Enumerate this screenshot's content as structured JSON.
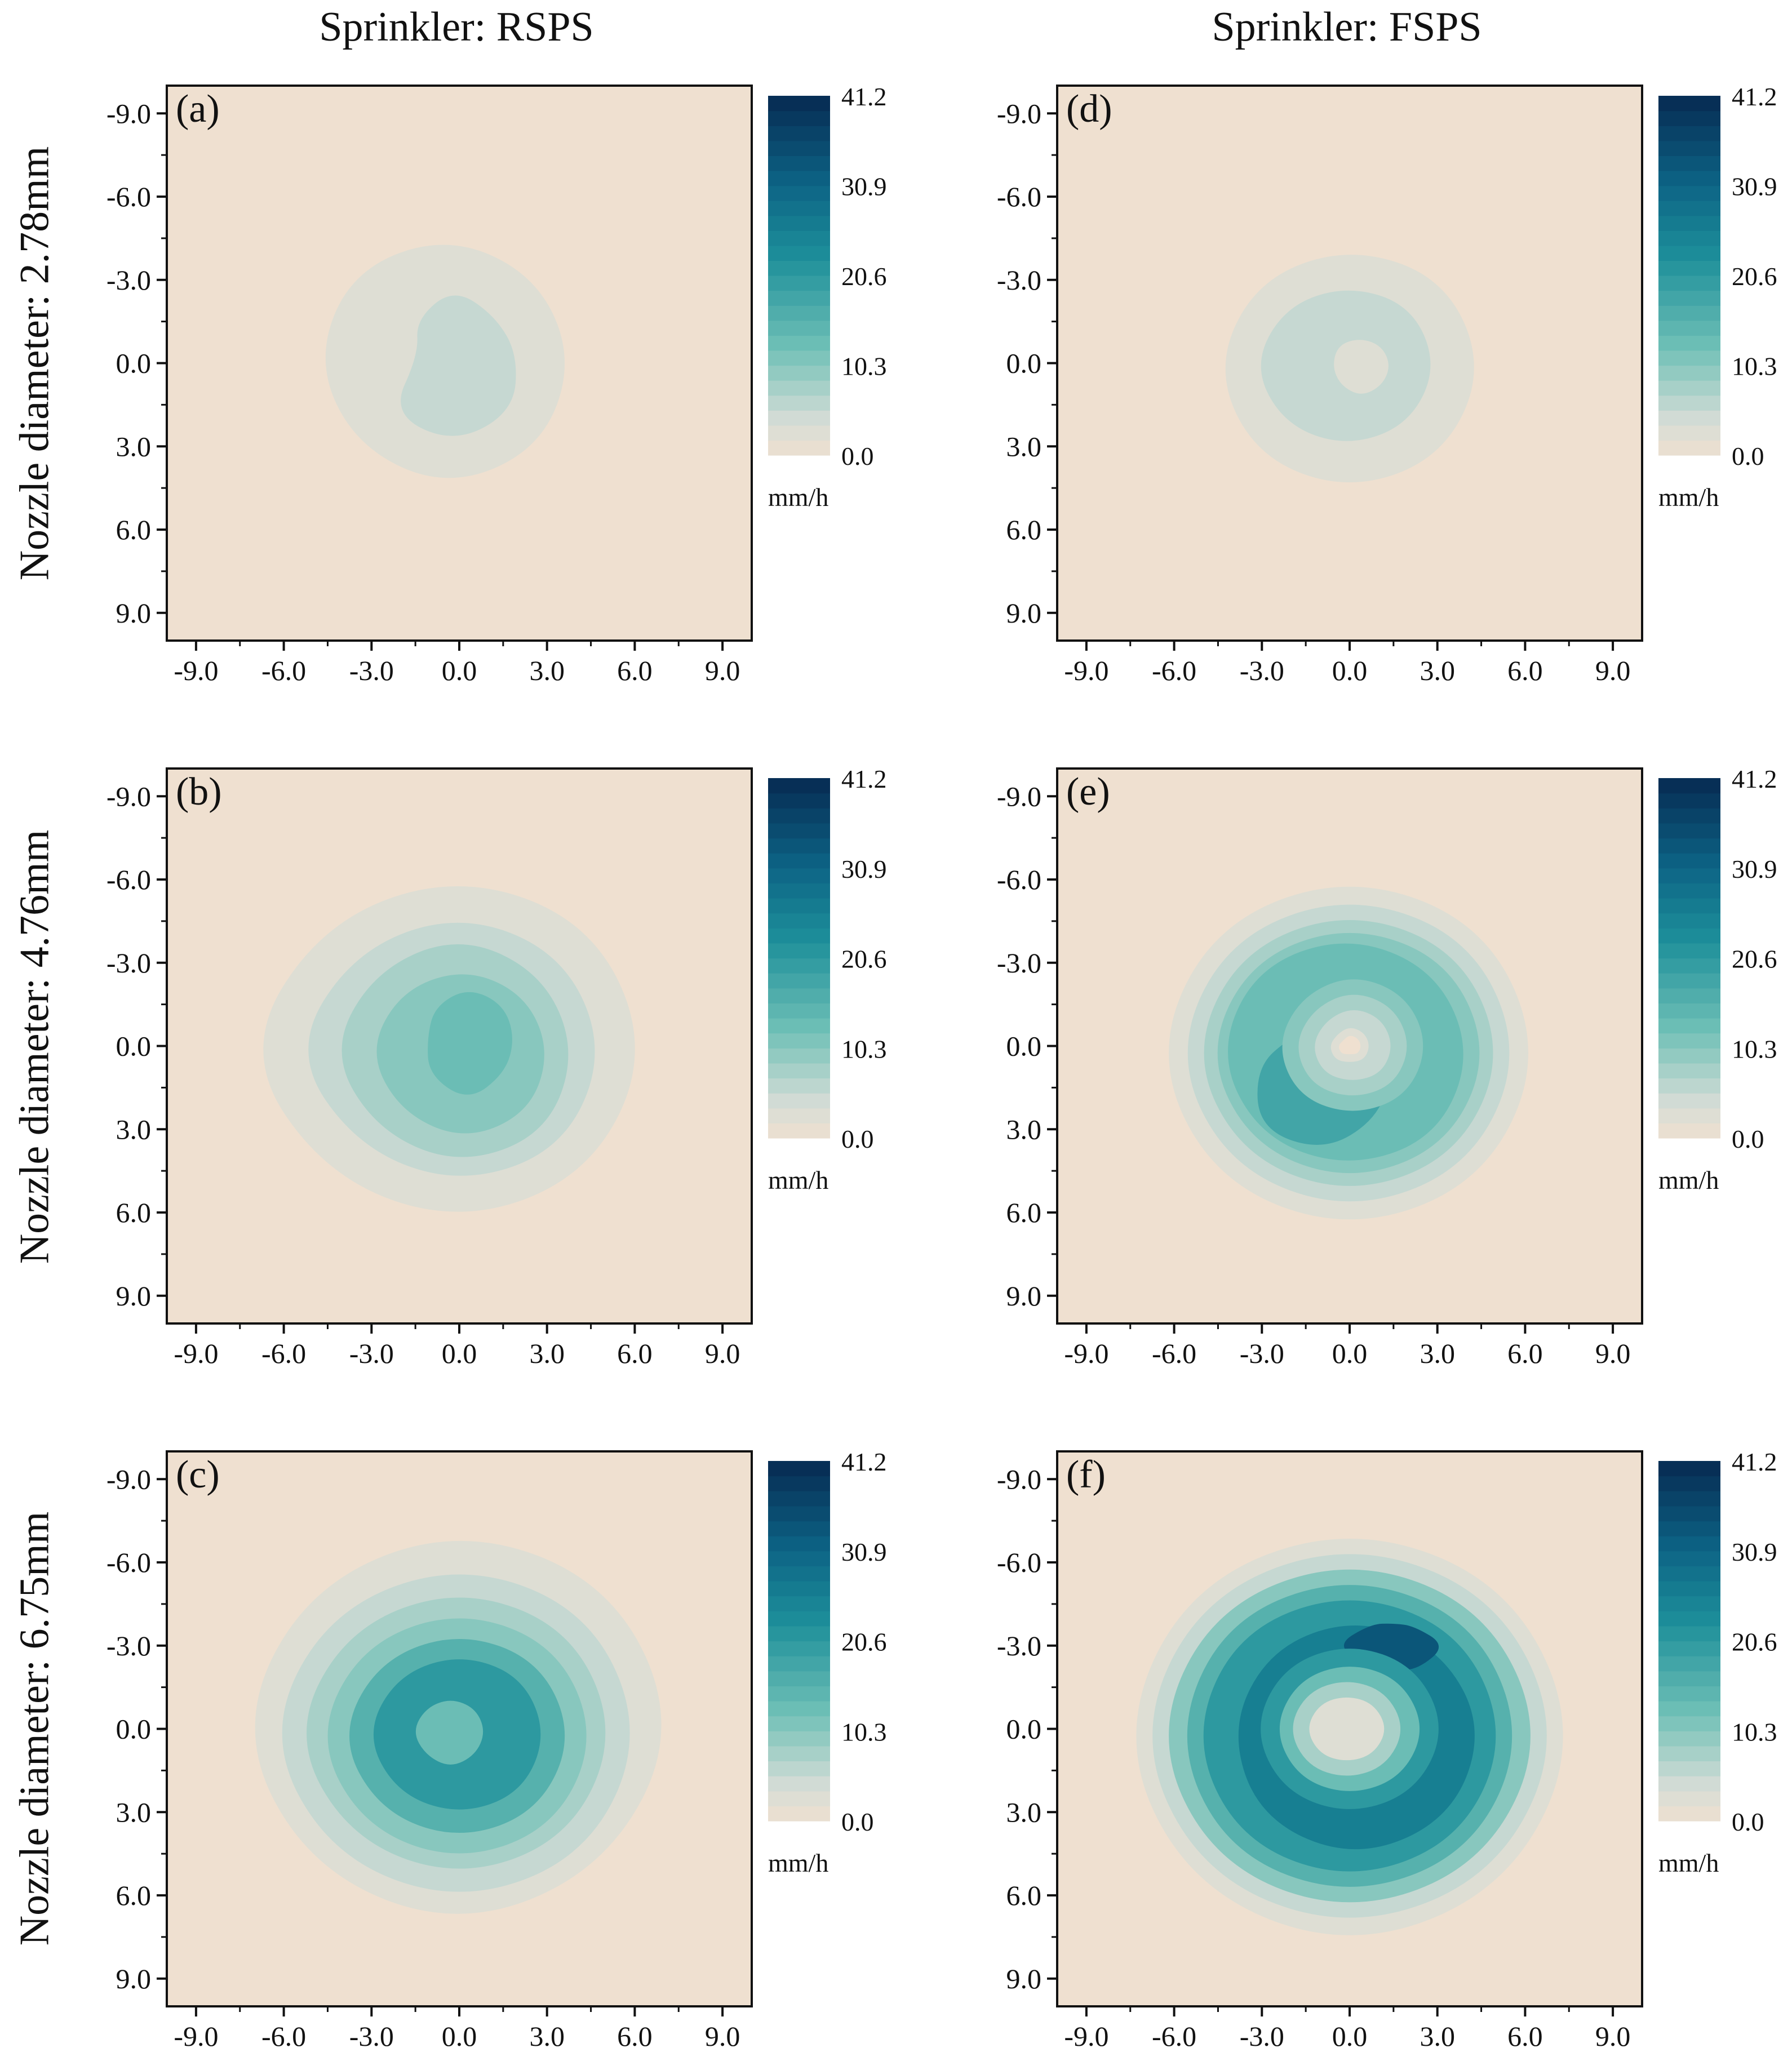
{
  "column_headers": [
    "Sprinkler: RSPS",
    "Sprinkler: FSPS"
  ],
  "row_labels": [
    "Nozzle diameter: 2.78mm",
    "Nozzle diameter: 4.76mm",
    "Nozzle diameter: 6.75mm"
  ],
  "colors": {
    "background": "#efe0d0",
    "scale_low": "#efe0d0",
    "scale_mid1": "#d3dcd6",
    "scale_mid2": "#6fc0b6",
    "scale_mid3": "#1d8f9a",
    "scale_mid4": "#0d6586",
    "scale_high": "#062a52"
  },
  "chart_data": [
    {
      "type": "heatmap",
      "panel_label": "(a)",
      "sprinkler": "RSPS",
      "nozzle_diameter_mm": 2.78,
      "x_ticks": [
        "-9.0",
        "-6.0",
        "-3.0",
        "0.0",
        "3.0",
        "6.0",
        "9.0"
      ],
      "y_ticks": [
        "-9.0",
        "-6.0",
        "-3.0",
        "0.0",
        "3.0",
        "6.0",
        "9.0"
      ],
      "xlim": [
        -10,
        10
      ],
      "ylim": [
        -10,
        10
      ],
      "y_inverted": true,
      "colorbar": {
        "ticks": [
          "0.0",
          "10.3",
          "20.6",
          "30.9",
          "41.2"
        ],
        "min": 0,
        "max": 41.2,
        "unit": "mm/h"
      },
      "contours": [
        {
          "level": 2.5,
          "center": [
            -0.4,
            -0.1
          ],
          "radii": [
            4.3,
            4.5,
            4.6,
            4.4,
            4.5,
            4.6,
            4.5,
            4.3
          ]
        },
        {
          "level": 5.2,
          "center": [
            -0.2,
            -0.3
          ],
          "radii": [
            2.2,
            2.9,
            3.2,
            3.0,
            1.2,
            1.8,
            2.4,
            2.0
          ]
        }
      ]
    },
    {
      "type": "heatmap",
      "panel_label": "(b)",
      "sprinkler": "RSPS",
      "nozzle_diameter_mm": 4.76,
      "x_ticks": [
        "-9.0",
        "-6.0",
        "-3.0",
        "0.0",
        "3.0",
        "6.0",
        "9.0"
      ],
      "y_ticks": [
        "-9.0",
        "-6.0",
        "-3.0",
        "0.0",
        "3.0",
        "6.0",
        "9.0"
      ],
      "xlim": [
        -10,
        10
      ],
      "ylim": [
        -10,
        10
      ],
      "y_inverted": true,
      "colorbar": {
        "ticks": [
          "0.0",
          "10.3",
          "20.6",
          "30.9",
          "41.2"
        ],
        "min": 0,
        "max": 41.2,
        "unit": "mm/h"
      },
      "contours": [
        {
          "level": 2.5,
          "center": [
            0,
            0.2
          ],
          "radii": [
            6.5,
            6.3,
            6.2,
            6.4,
            7.4,
            6.6,
            6.4,
            6.5
          ]
        },
        {
          "level": 5.2,
          "center": [
            0,
            0.2
          ],
          "radii": [
            5.0,
            5.0,
            4.8,
            4.9,
            5.7,
            5.1,
            5.0,
            5.0
          ]
        },
        {
          "level": 7.7,
          "center": [
            0,
            0.2
          ],
          "radii": [
            4.0,
            4.2,
            4.1,
            4.0,
            4.4,
            4.1,
            4.2,
            4.0
          ]
        },
        {
          "level": 10.3,
          "center": [
            0.2,
            0.2
          ],
          "radii": [
            2.9,
            3.1,
            3.2,
            3.1,
            3.3,
            3.1,
            3.0,
            2.9
          ]
        },
        {
          "level": 12.9,
          "center": [
            0.3,
            -0.3
          ],
          "radii": [
            1.6,
            1.8,
            2.3,
            1.9,
            1.4,
            1.6,
            1.8,
            1.7
          ]
        }
      ]
    },
    {
      "type": "heatmap",
      "panel_label": "(c)",
      "sprinkler": "RSPS",
      "nozzle_diameter_mm": 6.75,
      "x_ticks": [
        "-9.0",
        "-6.0",
        "-3.0",
        "0.0",
        "3.0",
        "6.0",
        "9.0"
      ],
      "y_ticks": [
        "-9.0",
        "-6.0",
        "-3.0",
        "0.0",
        "3.0",
        "6.0",
        "9.0"
      ],
      "xlim": [
        -10,
        10
      ],
      "ylim": [
        -10,
        10
      ],
      "y_inverted": true,
      "colorbar": {
        "ticks": [
          "0.0",
          "10.3",
          "20.6",
          "30.9",
          "41.2"
        ],
        "min": 0,
        "max": 41.2,
        "unit": "mm/h"
      },
      "contours": [
        {
          "level": 2.5,
          "center": [
            0,
            0
          ],
          "radii": [
            7.5,
            7.1,
            7.2,
            7.2,
            7.6,
            7.3,
            7.3,
            7.4
          ]
        },
        {
          "level": 5.2,
          "center": [
            0,
            0.2
          ],
          "radii": [
            6.3,
            6.2,
            6.1,
            6.2,
            6.6,
            6.3,
            6.2,
            6.3
          ]
        },
        {
          "level": 7.7,
          "center": [
            0,
            0.2
          ],
          "radii": [
            5.4,
            5.3,
            5.2,
            5.3,
            5.7,
            5.4,
            5.3,
            5.4
          ]
        },
        {
          "level": 10.3,
          "center": [
            0,
            0.3
          ],
          "radii": [
            4.7,
            4.6,
            4.5,
            4.6,
            4.9,
            4.7,
            4.6,
            4.7
          ]
        },
        {
          "level": 15.5,
          "center": [
            0,
            0.3
          ],
          "radii": [
            3.9,
            3.8,
            3.7,
            3.8,
            4.1,
            3.9,
            3.8,
            3.9
          ]
        },
        {
          "level": 20.6,
          "center": [
            0,
            0.2
          ],
          "radii": [
            3.0,
            3.0,
            2.9,
            3.0,
            3.2,
            3.0,
            2.9,
            3.0
          ]
        },
        {
          "level": 12.9,
          "center": [
            -0.3,
            0.1
          ],
          "radii": [
            1.2,
            1.2,
            1.3,
            1.2,
            1.3,
            1.2,
            1.2,
            1.2
          ]
        }
      ]
    },
    {
      "type": "heatmap",
      "panel_label": "(d)",
      "sprinkler": "FSPS",
      "nozzle_diameter_mm": 2.78,
      "x_ticks": [
        "-9.0",
        "-6.0",
        "-3.0",
        "0.0",
        "3.0",
        "6.0",
        "9.0"
      ],
      "y_ticks": [
        "-9.0",
        "-6.0",
        "-3.0",
        "0.0",
        "3.0",
        "6.0",
        "9.0"
      ],
      "xlim": [
        -10,
        10
      ],
      "ylim": [
        -10,
        10
      ],
      "y_inverted": true,
      "colorbar": {
        "ticks": [
          "0.0",
          "10.3",
          "20.6",
          "30.9",
          "41.2"
        ],
        "min": 0,
        "max": 41.2,
        "unit": "mm/h"
      },
      "contours": [
        {
          "level": 2.5,
          "center": [
            0,
            0.2
          ],
          "radii": [
            4.6,
            4.5,
            4.4,
            4.5,
            4.6,
            4.5,
            4.4,
            4.6
          ]
        },
        {
          "level": 5.2,
          "center": [
            -0.1,
            0.1
          ],
          "radii": [
            3.1,
            3.0,
            2.9,
            3.0,
            3.2,
            3.0,
            2.9,
            3.1
          ]
        },
        {
          "level": 2.5,
          "center": [
            0.4,
            0.1
          ],
          "radii": [
            1.0,
            1.0,
            1.1,
            1.0,
            1.0,
            1.1,
            1.0,
            1.0
          ]
        }
      ]
    },
    {
      "type": "heatmap",
      "panel_label": "(e)",
      "sprinkler": "FSPS",
      "nozzle_diameter_mm": 4.76,
      "x_ticks": [
        "-9.0",
        "-6.0",
        "-3.0",
        "0.0",
        "3.0",
        "6.0",
        "9.0"
      ],
      "y_ticks": [
        "-9.0",
        "-6.0",
        "-3.0",
        "0.0",
        "3.0",
        "6.0",
        "9.0"
      ],
      "xlim": [
        -10,
        10
      ],
      "ylim": [
        -10,
        10
      ],
      "y_inverted": true,
      "colorbar": {
        "ticks": [
          "0.0",
          "10.3",
          "20.6",
          "30.9",
          "41.2"
        ],
        "min": 0,
        "max": 41.2,
        "unit": "mm/h"
      },
      "contours": [
        {
          "level": 2.5,
          "center": [
            0,
            0.3
          ],
          "radii": [
            6.6,
            6.5,
            6.4,
            6.5,
            6.7,
            6.6,
            6.5,
            6.6
          ]
        },
        {
          "level": 5.2,
          "center": [
            0,
            0.3
          ],
          "radii": [
            5.9,
            5.8,
            5.7,
            5.8,
            6.0,
            5.9,
            5.8,
            5.9
          ]
        },
        {
          "level": 7.7,
          "center": [
            0,
            0.3
          ],
          "radii": [
            5.3,
            5.2,
            5.1,
            5.2,
            5.4,
            5.3,
            5.2,
            5.3
          ]
        },
        {
          "level": 10.3,
          "center": [
            0,
            0.3
          ],
          "radii": [
            4.8,
            4.7,
            4.6,
            4.7,
            4.9,
            4.8,
            4.7,
            4.8
          ]
        },
        {
          "level": 12.9,
          "center": [
            -0.1,
            0.3
          ],
          "radii": [
            4.3,
            4.3,
            4.1,
            4.2,
            4.4,
            4.4,
            4.3,
            4.3
          ]
        },
        {
          "level": 18.0,
          "center": [
            -0.9,
            0.8
          ],
          "radii": [
            2.4,
            2.6,
            3.0,
            3.1,
            2.3,
            1.6,
            1.5,
            1.8
          ]
        },
        {
          "level": 10.3,
          "center": [
            0.1,
            0
          ],
          "radii": [
            2.6,
            2.6,
            2.5,
            2.6,
            2.6,
            2.5,
            2.6,
            2.6
          ]
        },
        {
          "level": 7.7,
          "center": [
            0.1,
            0
          ],
          "radii": [
            2.0,
            2.0,
            1.9,
            2.0,
            2.0,
            1.9,
            2.0,
            2.0
          ]
        },
        {
          "level": 5.2,
          "center": [
            0.1,
            0
          ],
          "radii": [
            1.4,
            1.4,
            1.3,
            1.4,
            1.4,
            1.3,
            1.4,
            1.4
          ]
        },
        {
          "level": 2.5,
          "center": [
            0,
            0
          ],
          "radii": [
            0.7,
            0.7,
            0.6,
            0.7,
            0.7,
            0.6,
            0.7,
            0.7
          ]
        },
        {
          "level": 0.0,
          "center": [
            0,
            0
          ],
          "radii": [
            0.4,
            0.4,
            0.3,
            0.4,
            0.4,
            0.3,
            0.4,
            0.4
          ]
        }
      ]
    },
    {
      "type": "heatmap",
      "panel_label": "(f)",
      "sprinkler": "FSPS",
      "nozzle_diameter_mm": 6.75,
      "x_ticks": [
        "-9.0",
        "-6.0",
        "-3.0",
        "0.0",
        "3.0",
        "6.0",
        "9.0"
      ],
      "y_ticks": [
        "-9.0",
        "-6.0",
        "-3.0",
        "0.0",
        "3.0",
        "6.0",
        "9.0"
      ],
      "xlim": [
        -10,
        10
      ],
      "ylim": [
        -10,
        10
      ],
      "y_inverted": true,
      "colorbar": {
        "ticks": [
          "0.0",
          "10.3",
          "20.6",
          "30.9",
          "41.2"
        ],
        "min": 0,
        "max": 41.2,
        "unit": "mm/h"
      },
      "contours": [
        {
          "level": 2.5,
          "center": [
            0,
            0.3
          ],
          "radii": [
            7.9,
            7.7,
            7.7,
            7.7,
            7.9,
            7.8,
            7.7,
            7.8
          ]
        },
        {
          "level": 5.2,
          "center": [
            0,
            0.3
          ],
          "radii": [
            7.3,
            7.1,
            7.0,
            7.1,
            7.3,
            7.2,
            7.1,
            7.2
          ]
        },
        {
          "level": 10.3,
          "center": [
            0,
            0.3
          ],
          "radii": [
            6.7,
            6.5,
            6.4,
            6.5,
            6.7,
            6.6,
            6.5,
            6.6
          ]
        },
        {
          "level": 15.5,
          "center": [
            0,
            0.3
          ],
          "radii": [
            6.0,
            5.9,
            5.8,
            5.9,
            6.0,
            6.0,
            5.9,
            6.0
          ]
        },
        {
          "level": 20.6,
          "center": [
            0,
            0.3
          ],
          "radii": [
            5.4,
            5.3,
            5.2,
            5.3,
            5.4,
            5.4,
            5.3,
            5.4
          ]
        },
        {
          "level": 25.8,
          "center": [
            0.2,
            0
          ],
          "radii": [
            4.4,
            4.6,
            4.7,
            4.6,
            4.3,
            4.1,
            4.0,
            4.1
          ]
        },
        {
          "level": 33.5,
          "center": [
            1.5,
            -3.0
          ],
          "radii": [
            1.8,
            1.2,
            0.9,
            1.1,
            2.0,
            1.1,
            0.8,
            1.0
          ]
        },
        {
          "level": 20.6,
          "center": [
            0,
            0
          ],
          "radii": [
            3.3,
            3.2,
            3.1,
            3.2,
            3.3,
            3.2,
            3.1,
            3.2
          ]
        },
        {
          "level": 12.9,
          "center": [
            0,
            0
          ],
          "radii": [
            2.6,
            2.5,
            2.4,
            2.5,
            2.6,
            2.5,
            2.4,
            2.5
          ]
        },
        {
          "level": 7.7,
          "center": [
            -0.1,
            0
          ],
          "radii": [
            2.0,
            1.9,
            1.8,
            1.9,
            2.0,
            1.9,
            1.8,
            1.9
          ]
        },
        {
          "level": 2.5,
          "center": [
            -0.1,
            0
          ],
          "radii": [
            1.4,
            1.3,
            1.2,
            1.3,
            1.4,
            1.3,
            1.2,
            1.3
          ]
        }
      ]
    }
  ]
}
